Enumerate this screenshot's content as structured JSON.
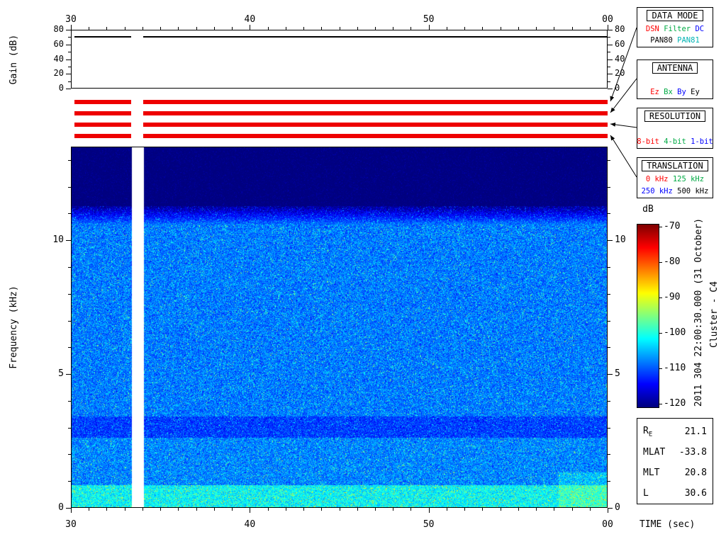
{
  "chart_data": [
    {
      "id": "gain",
      "type": "line",
      "ylabel": "Gain (dB)",
      "x_range_sec": [
        30,
        60
      ],
      "xticks": [
        {
          "value": 30,
          "label": "30"
        },
        {
          "value": 40,
          "label": "40"
        },
        {
          "value": 50,
          "label": "50"
        },
        {
          "value": 60,
          "label": "00"
        }
      ],
      "x_minor_step_sec": 1,
      "ylim": [
        0,
        80
      ],
      "yticks": [
        {
          "value": 0,
          "label": "0"
        },
        {
          "value": 20,
          "label": "20"
        },
        {
          "value": 40,
          "label": "40"
        },
        {
          "value": 60,
          "label": "60"
        },
        {
          "value": 80,
          "label": "80"
        }
      ],
      "y_minor_step": 10,
      "series": [
        {
          "name": "receiver-gain",
          "value_db": 70,
          "color": "#000000",
          "segments_sec": [
            [
              30.2,
              33.35
            ],
            [
              34.05,
              60.0
            ]
          ]
        }
      ]
    },
    {
      "id": "spectrogram",
      "type": "heatmap",
      "ylabel": "Frequency (kHz)",
      "xlabel": "TIME (sec)",
      "x_range_sec": [
        30,
        60
      ],
      "xticks": [
        {
          "value": 30,
          "label": "30"
        },
        {
          "value": 40,
          "label": "40"
        },
        {
          "value": 50,
          "label": "50"
        },
        {
          "value": 60,
          "label": "00"
        }
      ],
      "x_minor_step_sec": 1,
      "ylim_khz": [
        0,
        13.5
      ],
      "yticks": [
        {
          "value": 0,
          "label": "0"
        },
        {
          "value": 5,
          "label": "5"
        },
        {
          "value": 10,
          "label": "10"
        }
      ],
      "y_minor_step_khz": 1,
      "data_gap_sec": [
        33.35,
        34.05
      ],
      "noise_bands": [
        {
          "freq_khz": [
            11.3,
            13.5
          ],
          "mean_db": -120,
          "spread_db": 1.2,
          "note": "dark noise floor above passband"
        },
        {
          "freq_khz": [
            10.6,
            11.3
          ],
          "mean_db": -108,
          "mean2_db": -119,
          "spread_db": 5,
          "note": "passband rolloff"
        },
        {
          "freq_khz": [
            3.4,
            10.6
          ],
          "mean_db": -108,
          "spread_db": 6.5,
          "note": "broadband blue-cyan speckle"
        },
        {
          "freq_khz": [
            2.6,
            3.4
          ],
          "mean_db": -111,
          "spread_db": 5.5,
          "note": "slightly darker band near 3 kHz"
        },
        {
          "freq_khz": [
            0.8,
            2.6
          ],
          "mean_db": -107.5,
          "spread_db": 6.5,
          "note": "speckle"
        },
        {
          "freq_khz": [
            0.0,
            0.8
          ],
          "mean_db": -101.5,
          "spread_db": 7,
          "note": "bright green low-frequency band"
        }
      ],
      "hotspots": [
        {
          "t_sec": [
            57.3,
            60.0
          ],
          "freq_khz": [
            0.0,
            1.3
          ],
          "boost_db": 3,
          "note": "brighter patch bottom right"
        }
      ],
      "colorbar": {
        "label": "dB",
        "min_db": -120,
        "max_db": -70,
        "ticks": [
          {
            "value": -70,
            "label": "-70"
          },
          {
            "value": -80,
            "label": "-80"
          },
          {
            "value": -90,
            "label": "-90"
          },
          {
            "value": -100,
            "label": "-100"
          },
          {
            "value": -110,
            "label": "-110"
          },
          {
            "value": -120,
            "label": "-120"
          }
        ]
      }
    }
  ],
  "status_stripes": {
    "rows": 4,
    "color": "#ee0000",
    "t_range_sec": [
      30.2,
      60.0
    ],
    "gap_sec": [
      33.35,
      34.05
    ]
  },
  "info_boxes": [
    {
      "id": "data-mode",
      "title": "DATA MODE",
      "lines": [
        [
          {
            "text": "DSN",
            "color": "#ff0000"
          },
          {
            "text": "Filter",
            "color": "#00aa44"
          },
          {
            "text": "DC",
            "color": "#0000ff"
          }
        ],
        [
          {
            "text": "PAN80",
            "color": "#000000"
          },
          {
            "text": "PAN81",
            "color": "#00b3b3"
          }
        ]
      ]
    },
    {
      "id": "antenna",
      "title": "ANTENNA",
      "lines": [
        [
          {
            "text": "Ez",
            "color": "#ff0000"
          },
          {
            "text": "Bx",
            "color": "#00aa44"
          },
          {
            "text": "By",
            "color": "#0000ff"
          },
          {
            "text": "Ey",
            "color": "#000000"
          }
        ]
      ]
    },
    {
      "id": "resolution",
      "title": "RESOLUTION",
      "lines": [
        [
          {
            "text": "8-bit",
            "color": "#ff0000"
          },
          {
            "text": "4-bit",
            "color": "#00aa44"
          },
          {
            "text": "1-bit",
            "color": "#0000ff"
          }
        ]
      ]
    },
    {
      "id": "translation",
      "title": "TRANSLATION",
      "lines": [
        [
          {
            "text": "0 kHz",
            "color": "#ff0000"
          },
          {
            "text": "125 kHz",
            "color": "#00aa44"
          }
        ],
        [
          {
            "text": "250 kHz",
            "color": "#0000ff"
          },
          {
            "text": "500 kHz",
            "color": "#000000"
          }
        ]
      ]
    }
  ],
  "side_labels": {
    "timestamp": "2011 304 22:00:30.000 (31 October)",
    "spacecraft": "Cluster - C4"
  },
  "ephemeris": {
    "rows": [
      {
        "label": "R",
        "subscript": "E",
        "value": "21.1"
      },
      {
        "label": "MLAT",
        "subscript": "",
        "value": "-33.8"
      },
      {
        "label": "MLT",
        "subscript": "",
        "value": "20.8"
      },
      {
        "label": "L",
        "subscript": "",
        "value": "30.6"
      }
    ]
  }
}
